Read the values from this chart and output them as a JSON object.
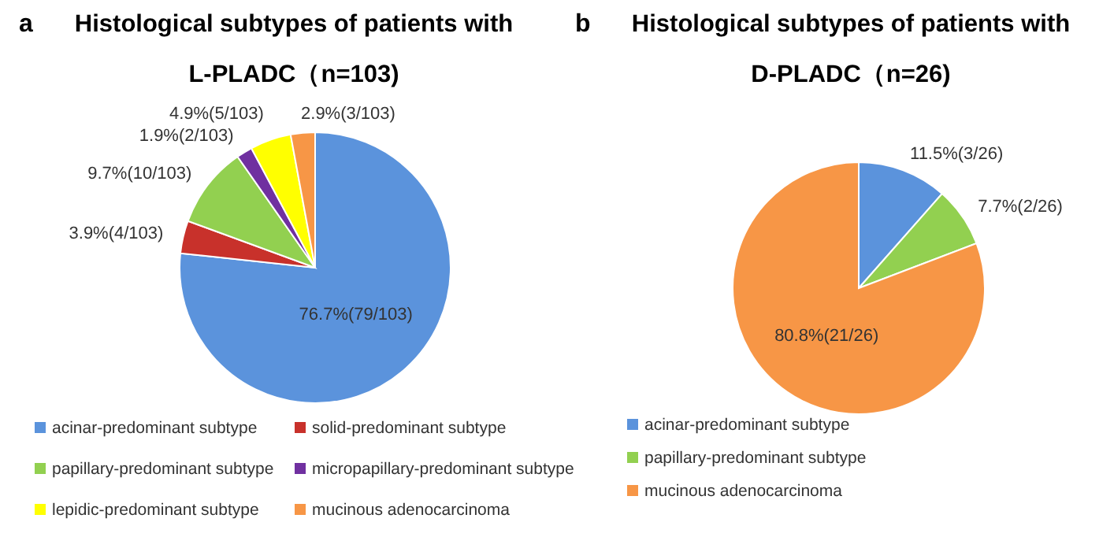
{
  "chart_data": [
    {
      "type": "pie",
      "title": "Histological subtypes of patients with L-PLADC（n=103)",
      "annotations": [
        "a"
      ],
      "categories": [
        "acinar-predominant subtype",
        "solid-predominant subtype",
        "papillary-predominant subtype",
        "micropapillary-predominant subtype",
        "lepidic-predominant subtype",
        "mucinous adenocarcinoma"
      ],
      "values": [
        76.7,
        3.9,
        9.7,
        1.9,
        4.9,
        2.9
      ],
      "value_labels": [
        "76.7%(79/103)",
        "3.9%(4/103)",
        "9.7%(10/103)",
        "1.9%(2/103)",
        "4.9%(5/103)",
        "2.9%(3/103)"
      ],
      "colors": [
        "#5b93dc",
        "#c8312b",
        "#92d050",
        "#7030a0",
        "#ffff00",
        "#f79646"
      ],
      "legend": "bottom"
    },
    {
      "type": "pie",
      "title": "Histological subtypes of patients with D-PLADC（n=26)",
      "annotations": [
        "b"
      ],
      "categories": [
        "acinar-predominant subtype",
        "papillary-predominant subtype",
        "mucinous adenocarcinoma"
      ],
      "values": [
        11.5,
        7.7,
        80.8
      ],
      "value_labels": [
        "11.5%(3/26)",
        "7.7%(2/26)",
        "80.8%(21/26)"
      ],
      "colors": [
        "#5b93dc",
        "#92d050",
        "#f79646"
      ],
      "legend": "bottom"
    }
  ]
}
